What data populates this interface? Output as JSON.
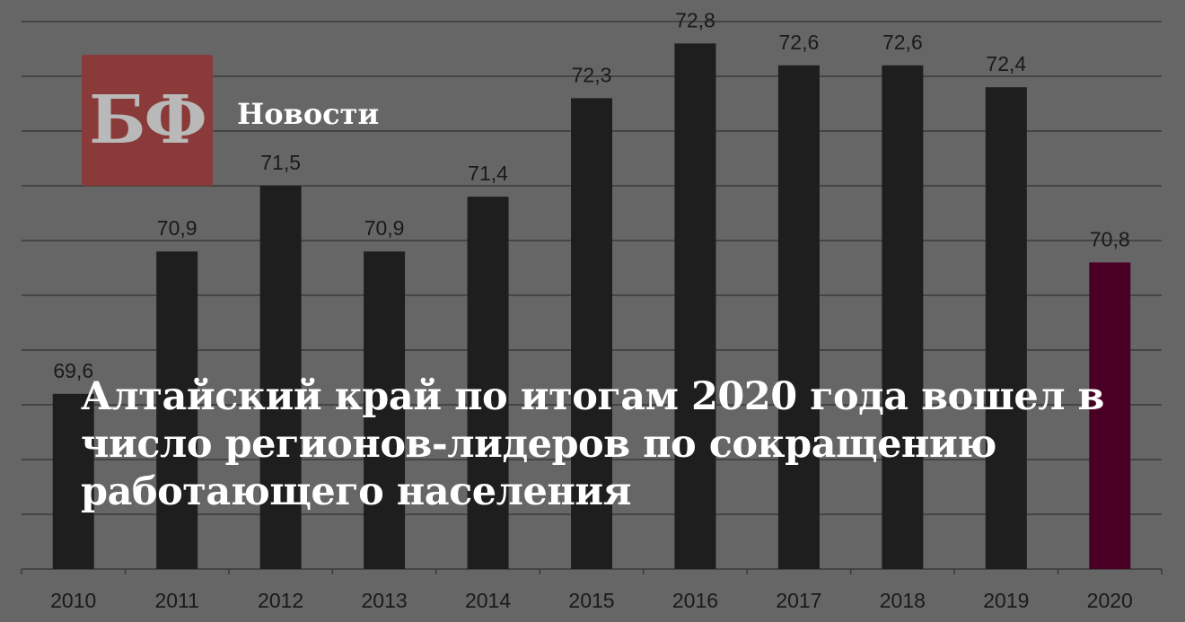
{
  "chart_data": {
    "type": "bar",
    "categories": [
      "2010",
      "2011",
      "2012",
      "2013",
      "2014",
      "2015",
      "2016",
      "2017",
      "2018",
      "2019",
      "2020"
    ],
    "values": [
      69.6,
      70.9,
      71.5,
      70.9,
      71.4,
      72.3,
      72.8,
      72.6,
      72.6,
      72.4,
      70.8
    ],
    "data_labels": [
      "69,6",
      "70,9",
      "71,5",
      "70,9",
      "71,4",
      "72,3",
      "72,8",
      "72,6",
      "72,6",
      "72,4",
      "70,8"
    ],
    "ylim": [
      68,
      73
    ],
    "grid": true,
    "bar_color": "#1e1e1e",
    "highlight_color": "#4a0025",
    "highlight_category": "2020"
  },
  "logo": {
    "text": "БФ",
    "color": "#8a3a39"
  },
  "brand": {
    "label": "Новости"
  },
  "headline": "Алтайский край по итогам 2020 года вошел в число регионов-лидеров по сокращению работающего населения"
}
